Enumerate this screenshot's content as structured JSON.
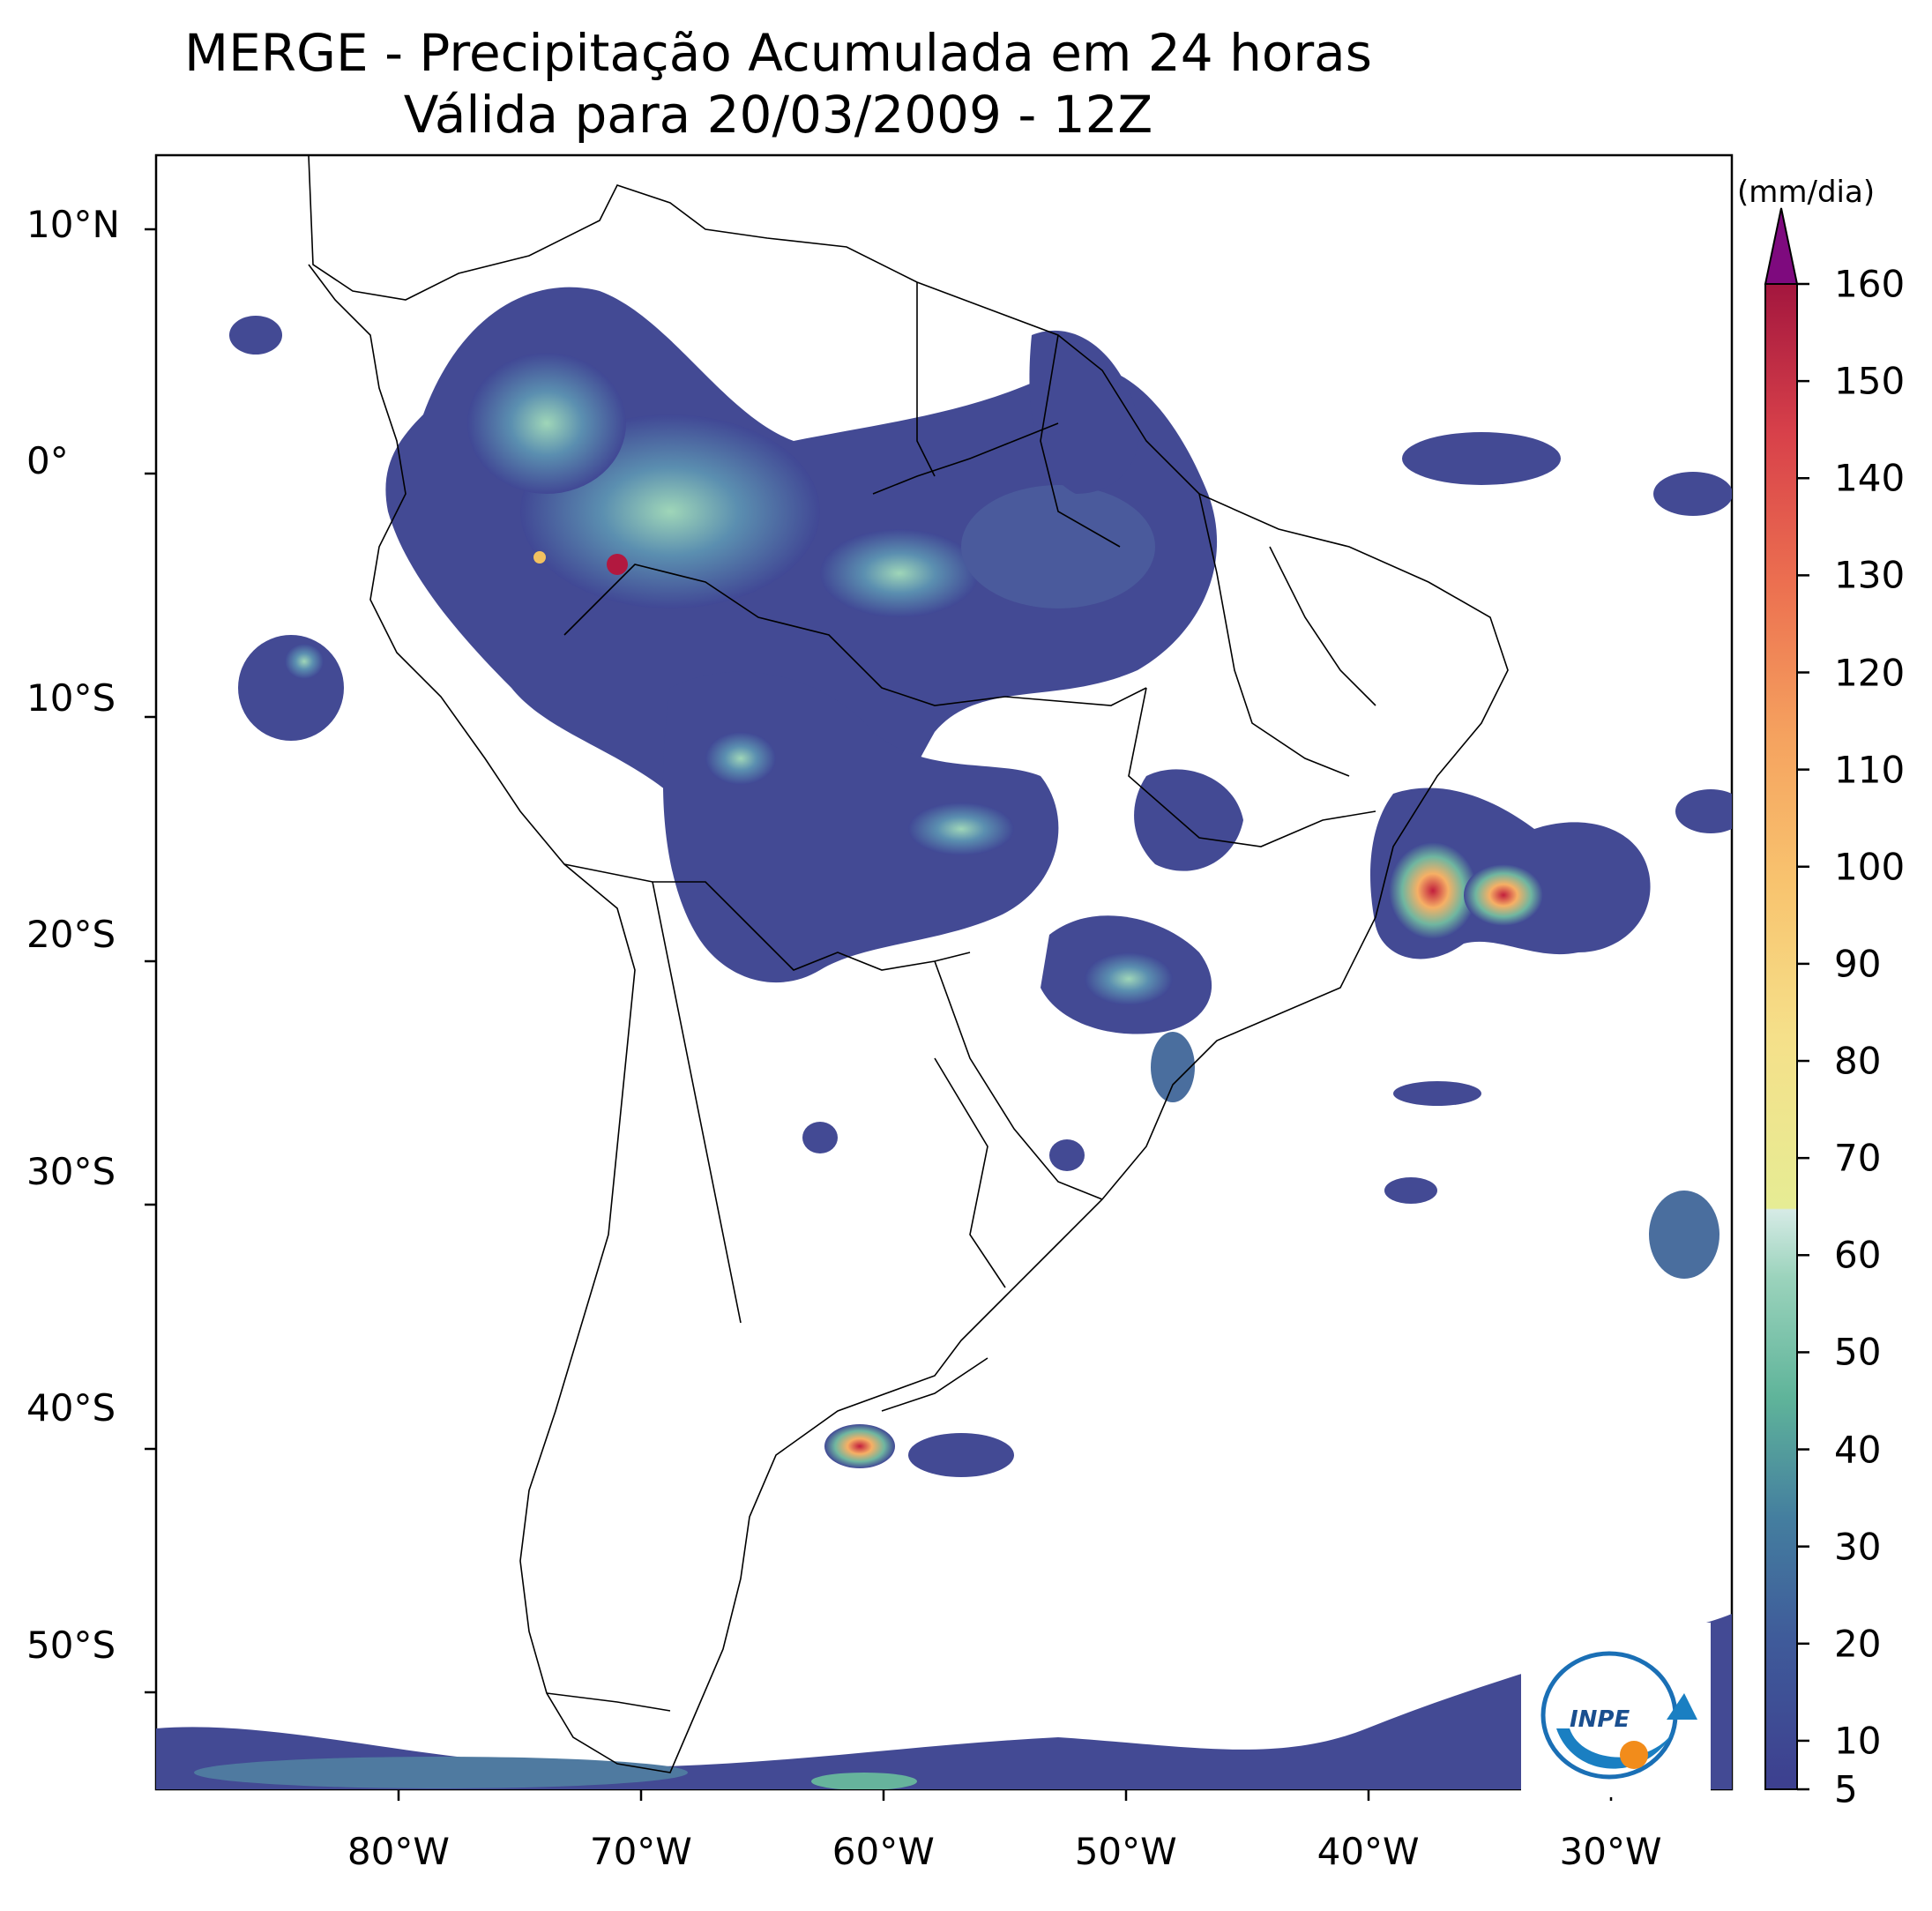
{
  "title": {
    "line1": "MERGE - Precipitação Acumulada em 24 horas",
    "line2": "Válida para 20/03/2009 - 12Z"
  },
  "map": {
    "lat_labels": [
      "10°N",
      "0°",
      "10°S",
      "20°S",
      "30°S",
      "40°S",
      "50°S"
    ],
    "lon_labels": [
      "80°W",
      "70°W",
      "60°W",
      "50°W",
      "40°W",
      "30°W"
    ],
    "lat_values": [
      10,
      0,
      -10,
      -20,
      -30,
      -40,
      -50
    ],
    "lon_values": [
      -80,
      -70,
      -60,
      -50,
      -40,
      -30
    ],
    "extent": {
      "lon_min": -90,
      "lon_max": -25,
      "lat_min": -56,
      "lat_max": 13
    }
  },
  "colorbar": {
    "units": "(mm/dia)",
    "tick_labels": [
      "5",
      "10",
      "20",
      "30",
      "40",
      "50",
      "60",
      "70",
      "80",
      "90",
      "100",
      "110",
      "120",
      "130",
      "140",
      "150",
      "160"
    ],
    "tick_values": [
      5,
      10,
      20,
      30,
      40,
      50,
      60,
      70,
      80,
      90,
      100,
      110,
      120,
      130,
      140,
      150,
      160
    ],
    "range": [
      5,
      160
    ],
    "extend": "max",
    "colors": {
      "low": "#3d3f8f",
      "mid_low": "#3b6f9a",
      "teal": "#5fb49a",
      "pale": "#d6ebe6",
      "yellow": "#e8ea8c",
      "orange": "#f5a25f",
      "red": "#d8414a",
      "dark_red": "#a3163e",
      "over": "#7e0a7e"
    }
  },
  "logo": {
    "text": "INPE"
  }
}
